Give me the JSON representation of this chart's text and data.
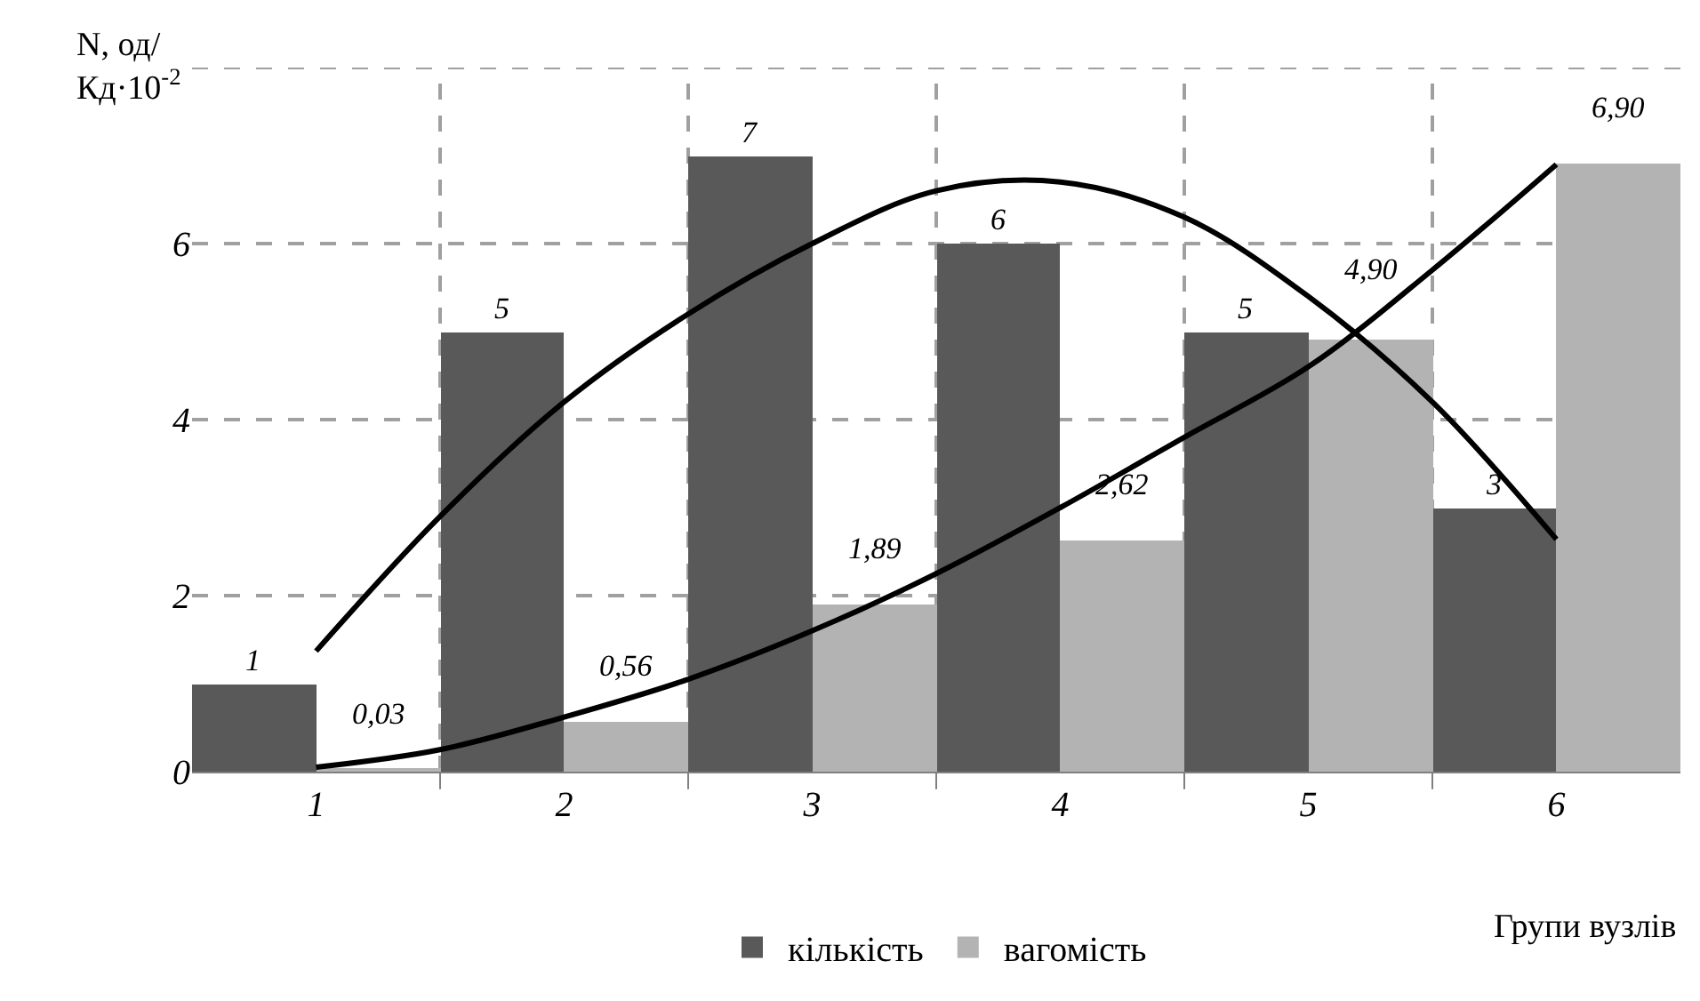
{
  "chart_data": {
    "type": "bar",
    "ylabel": "N, од/\nКд·10$^{-2}$",
    "xlabel": "Групи вузлів",
    "x": [
      1,
      2,
      3,
      4,
      5,
      6
    ],
    "xlim": [
      0.5,
      6.5
    ],
    "xticks": [
      1,
      {
        "value": 1.5,
        "label": null
      },
      2,
      {
        "value": 2.5,
        "label": null
      },
      3,
      {
        "value": 3.5,
        "label": null
      },
      4,
      {
        "value": 4.5,
        "label": null
      },
      5,
      {
        "value": 5.5,
        "label": null
      },
      6
    ],
    "ylim": [
      0,
      8
    ],
    "yticks": [
      0,
      2,
      4,
      6,
      {
        "value": 8,
        "label": null
      }
    ],
    "grid": true,
    "legend": "bottom",
    "series": [
      {
        "name": "кількість",
        "color": "#595959",
        "values": [
          1,
          5,
          7,
          6,
          5,
          3
        ],
        "value_labels": [
          "1",
          "5",
          "7",
          "6",
          "5",
          "3"
        ]
      },
      {
        "name": "вагомість",
        "color": "#b3b3b3",
        "values": [
          0.03,
          0.56,
          1.89,
          2.62,
          4.9,
          6.9
        ],
        "value_labels": [
          "0,03",
          "0,56",
          "1,89",
          "2,62",
          "4,90",
          "6,90"
        ]
      },
      {
        "type": "line",
        "color": "#000000",
        "x": [
          1,
          1.5,
          2,
          2.5,
          3,
          3.5,
          4,
          4.5,
          5,
          5.5,
          6
        ],
        "values": [
          1.37,
          2.9,
          4.2,
          5.2,
          6.0,
          6.6,
          6.7,
          6.3,
          5.4,
          4.2,
          2.64
        ]
      },
      {
        "type": "line",
        "color": "#000000",
        "x": [
          1,
          1.5,
          2,
          2.5,
          3,
          3.5,
          4,
          4.5,
          5,
          5.5,
          6
        ],
        "values": [
          0.05,
          0.25,
          0.62,
          1.05,
          1.6,
          2.25,
          3.0,
          3.8,
          4.6,
          5.7,
          6.9
        ]
      }
    ]
  }
}
